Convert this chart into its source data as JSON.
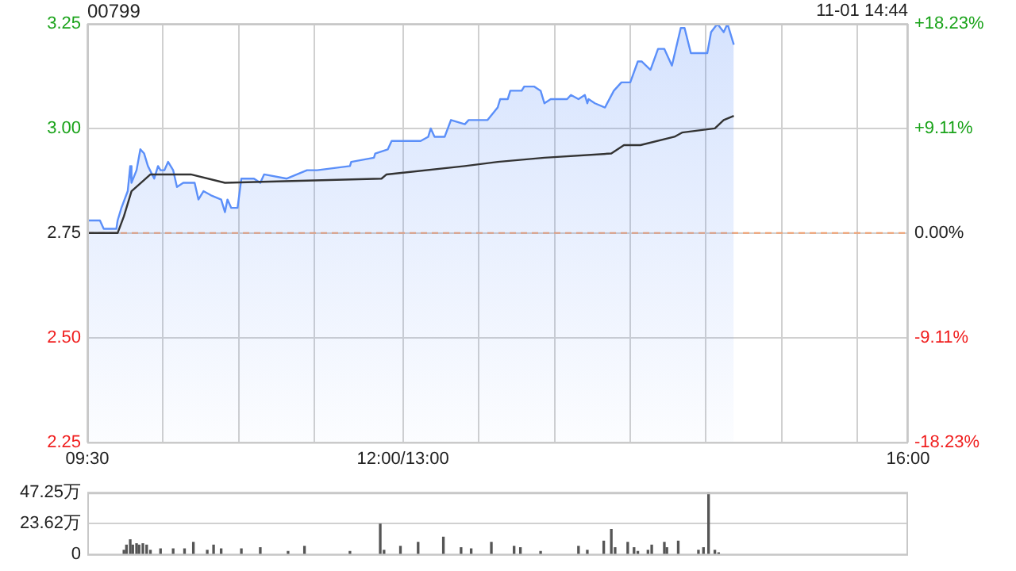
{
  "chart_data": [
    {
      "type": "area",
      "title": "00799",
      "annotations": [
        "11-01 14:44"
      ],
      "marker": "none",
      "grid": true,
      "legend": false,
      "xlim": [
        9.5,
        16
      ],
      "xticks": [
        {
          "value": 9.5,
          "label": "09:30"
        },
        {
          "value": 10.1,
          "label": null
        },
        {
          "value": 10.7,
          "label": null
        },
        {
          "value": 11.3,
          "label": null
        },
        {
          "value": 12,
          "label": "12:00/13:00"
        },
        {
          "value": 12.6,
          "label": null
        },
        {
          "value": 13.2,
          "label": null
        },
        {
          "value": 13.8,
          "label": null
        },
        {
          "value": 14.4,
          "label": null
        },
        {
          "value": 15,
          "label": null
        },
        {
          "value": 15.6,
          "label": null
        },
        {
          "value": 16,
          "label": "16:00"
        }
      ],
      "ylim": [
        2.25,
        3.25
      ],
      "yticks": [
        2.25,
        {
          "value": 2.5,
          "label": "2.50"
        },
        2.75,
        {
          "value": 3,
          "label": "3.00"
        },
        3.25
      ],
      "y2lim": [
        -18.23,
        18.23
      ],
      "y2ticks": [
        {
          "value": -18.23,
          "label": "-18.23%"
        },
        {
          "value": -9.11,
          "label": "-9.11%"
        },
        {
          "value": 0,
          "label": "0.00%"
        },
        {
          "value": 9.11,
          "label": "+9.11%"
        },
        {
          "value": 18.23,
          "label": "+18.23%"
        }
      ],
      "ref_lines": [
        {
          "axis": "y",
          "value": 2.75,
          "color": "#f0a070",
          "line_style": "dashed"
        }
      ],
      "series": [
        {
          "color": "#5b8ff9",
          "x": [
            9.5,
            9.6,
            9.63,
            9.73,
            9.74,
            9.77,
            9.82,
            9.84,
            9.85,
            9.89,
            9.92,
            9.95,
            9.98,
            10.03,
            10.06,
            10.08,
            10.11,
            10.14,
            10.18,
            10.21,
            10.26,
            10.35,
            10.38,
            10.42,
            10.48,
            10.56,
            10.59,
            10.61,
            10.64,
            10.69,
            10.72,
            10.82,
            10.87,
            10.9,
            11.08,
            11.24,
            11.32,
            11.58,
            11.59,
            11.77,
            11.78,
            11.88,
            11.91,
            12.14,
            12.2,
            12.22,
            12.25,
            12.33,
            12.38,
            12.49,
            12.52,
            12.57,
            12.67,
            12.75,
            12.77,
            12.83,
            12.85,
            12.94,
            12.96,
            12.99,
            13.04,
            13.09,
            13.12,
            13.17,
            13.3,
            13.33,
            13.39,
            13.44,
            13.46,
            13.47,
            13.52,
            13.6,
            13.67,
            13.73,
            13.8,
            13.86,
            13.89,
            13.96,
            14.02,
            14.07,
            14.13,
            14.2,
            14.23,
            14.28,
            14.41,
            14.44,
            14.49,
            14.54,
            14.57,
            14.62
          ],
          "values": [
            2.78,
            2.78,
            2.76,
            2.76,
            2.78,
            2.81,
            2.85,
            2.91,
            2.87,
            2.9,
            2.95,
            2.94,
            2.91,
            2.88,
            2.91,
            2.9,
            2.9,
            2.92,
            2.9,
            2.86,
            2.87,
            2.87,
            2.83,
            2.85,
            2.84,
            2.83,
            2.8,
            2.83,
            2.81,
            2.81,
            2.88,
            2.88,
            2.87,
            2.89,
            2.88,
            2.9,
            2.9,
            2.91,
            2.92,
            2.93,
            2.94,
            2.95,
            2.97,
            2.97,
            2.98,
            3,
            2.98,
            2.98,
            3.02,
            3.01,
            3.02,
            3.02,
            3.02,
            3.05,
            3.07,
            3.07,
            3.09,
            3.09,
            3.1,
            3.1,
            3.1,
            3.09,
            3.06,
            3.07,
            3.07,
            3.08,
            3.07,
            3.08,
            3.06,
            3.07,
            3.06,
            3.05,
            3.09,
            3.11,
            3.11,
            3.16,
            3.16,
            3.14,
            3.19,
            3.19,
            3.15,
            3.24,
            3.24,
            3.18,
            3.18,
            3.23,
            3.25,
            3.23,
            3.25,
            3.2
          ]
        },
        {
          "type": "line",
          "color": "#333333",
          "x": [
            9.5,
            9.74,
            9.79,
            9.85,
            10,
            10.32,
            10.59,
            11.83,
            11.87,
            12.49,
            12.75,
            13.12,
            13.65,
            13.75,
            13.88,
            14.15,
            14.21,
            14.47,
            14.54,
            14.62
          ],
          "values": [
            2.75,
            2.75,
            2.79,
            2.85,
            2.89,
            2.89,
            2.87,
            2.88,
            2.89,
            2.91,
            2.92,
            2.93,
            2.94,
            2.96,
            2.96,
            2.98,
            2.99,
            3,
            3.02,
            3.03
          ]
        }
      ]
    },
    {
      "type": "bar",
      "grid": "y",
      "legend": false,
      "tick_labels": "y",
      "color": "#555555",
      "xlim": [
        9.5,
        16
      ],
      "ylim": [
        0,
        47.25
      ],
      "yticks": [
        0,
        {
          "value": 23.62,
          "label": "23.62万"
        },
        {
          "value": 47.25,
          "label": "47.25万"
        }
      ],
      "x": [
        9.79,
        9.81,
        9.84,
        9.86,
        9.89,
        9.91,
        9.94,
        9.97,
        10,
        10.08,
        10.18,
        10.27,
        10.34,
        10.45,
        10.5,
        10.56,
        10.72,
        10.87,
        11.09,
        11.22,
        11.58,
        11.82,
        11.85,
        11.98,
        12.12,
        12.32,
        12.46,
        12.54,
        12.7,
        12.88,
        12.93,
        13.09,
        13.39,
        13.46,
        13.59,
        13.65,
        13.68,
        13.78,
        13.83,
        13.86,
        13.94,
        13.97,
        14.07,
        14.09,
        14.18,
        14.34,
        14.38,
        14.42,
        14.47,
        14.5
      ],
      "values": [
        3,
        7,
        11,
        7,
        8,
        7,
        8,
        7,
        3,
        4,
        4,
        4,
        9,
        3,
        7,
        4,
        4,
        5,
        2,
        6,
        2,
        23,
        3,
        6,
        9,
        13,
        5,
        4,
        9,
        6,
        5,
        2,
        6,
        3,
        10,
        19,
        5,
        9,
        5,
        2,
        3,
        7,
        9,
        5,
        10,
        3,
        5,
        47,
        3,
        1
      ]
    }
  ]
}
